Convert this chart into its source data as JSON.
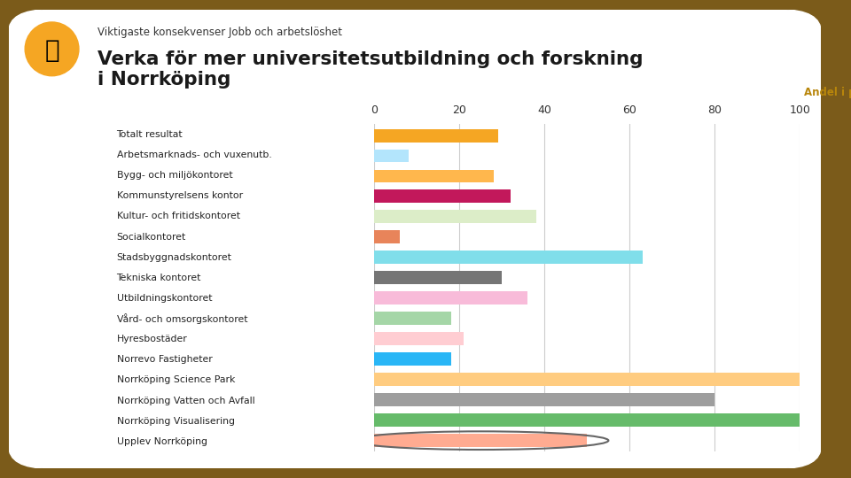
{
  "subtitle": "Viktigaste konsekvenser Jobb och arbetslöshet",
  "title": "Verka för mer universitetsutbildning och forskning\ni Norrköping",
  "xlabel": "Andel i procent",
  "categories": [
    "Totalt resultat",
    "Arbetsmarknads- och vuxenutb.",
    "Bygg- och miljökontoret",
    "Kommunstyrelsens kontor",
    "Kultur- och fritidskontoret",
    "Socialkontoret",
    "Stadsbyggnadskontoret",
    "Tekniska kontoret",
    "Utbildningskontoret",
    "Vård- och omsorgskontoret",
    "Hyresbostäder",
    "Norrevo Fastigheter",
    "Norrköping Science Park",
    "Norrköping Vatten och Avfall",
    "Norrköping Visualisering",
    "Upplev Norrköping"
  ],
  "values": [
    29,
    8,
    28,
    32,
    38,
    6,
    63,
    30,
    36,
    18,
    21,
    18,
    100,
    80,
    100,
    50
  ],
  "bar_colors": [
    "#F5A623",
    "#B3E5FC",
    "#FFB74D",
    "#C2185B",
    "#DCEDC8",
    "#E8845A",
    "#80DEEA",
    "#757575",
    "#F8BBD9",
    "#A5D6A7",
    "#FFCDD2",
    "#29B6F6",
    "#FFCC80",
    "#9E9E9E",
    "#66BB6A",
    "#FFAB91"
  ],
  "xlim": [
    0,
    100
  ],
  "xticks": [
    0,
    20,
    40,
    60,
    80,
    100
  ],
  "bg_color": "#FFFFFF",
  "outer_bg": "#7B5B1A",
  "title_color": "#1A1A1A",
  "subtitle_color": "#333333",
  "xlabel_color": "#B8860B",
  "icon_bg_color": "#F5A623"
}
